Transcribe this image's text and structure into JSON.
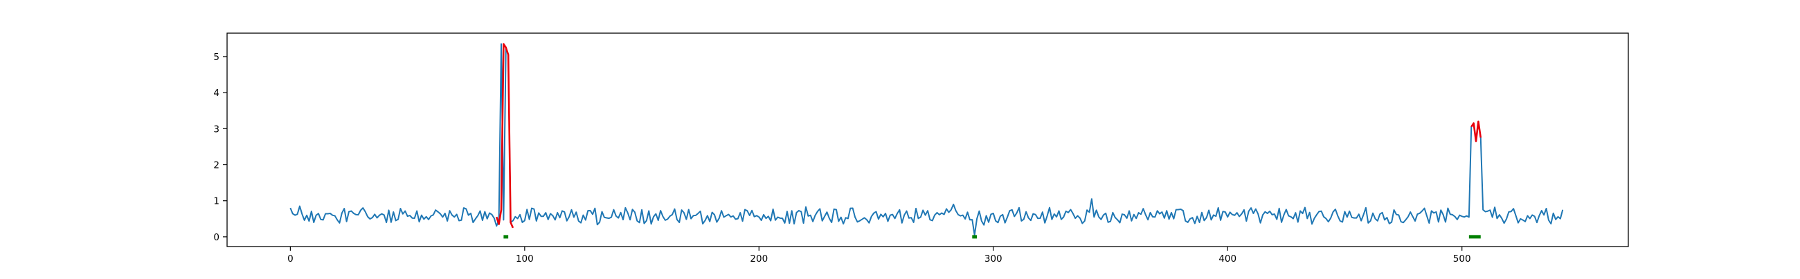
{
  "chart_data": {
    "type": "line",
    "title": "",
    "xlabel": "",
    "ylabel": "",
    "xlim": [
      -27,
      571
    ],
    "ylim": [
      -0.27,
      5.65
    ],
    "x_ticks": [
      0,
      100,
      200,
      300,
      400,
      500
    ],
    "y_ticks": [
      0,
      1,
      2,
      3,
      4,
      5
    ],
    "grid": false,
    "legend": "none",
    "series": [
      {
        "role": "signal",
        "color": "#1f77b4",
        "n_points": 544,
        "baseline_mean": 0.58,
        "baseline_amplitude": 0.2,
        "x_min": 0,
        "x_max": 543,
        "anchors": [
          {
            "x": 0,
            "y": 0.8
          },
          {
            "x": 2,
            "y": 0.6
          },
          {
            "x": 4,
            "y": 0.85
          },
          {
            "x": 10,
            "y": 0.4
          },
          {
            "x": 45,
            "y": 0.45
          },
          {
            "x": 70,
            "y": 0.55
          },
          {
            "x": 88,
            "y": 0.3
          },
          {
            "x": 90,
            "y": 5.35
          },
          {
            "x": 92,
            "y": 5.25
          },
          {
            "x": 93,
            "y": 5.05
          },
          {
            "x": 94,
            "y": 0.4
          },
          {
            "x": 100,
            "y": 0.45
          },
          {
            "x": 150,
            "y": 0.75
          },
          {
            "x": 200,
            "y": 0.55
          },
          {
            "x": 283,
            "y": 0.9
          },
          {
            "x": 292,
            "y": 0.05
          },
          {
            "x": 300,
            "y": 0.65
          },
          {
            "x": 342,
            "y": 1.05
          },
          {
            "x": 400,
            "y": 0.55
          },
          {
            "x": 450,
            "y": 0.7
          },
          {
            "x": 501,
            "y": 0.55
          },
          {
            "x": 504,
            "y": 3.05
          },
          {
            "x": 505,
            "y": 3.15
          },
          {
            "x": 506,
            "y": 2.65
          },
          {
            "x": 507,
            "y": 3.2
          },
          {
            "x": 508,
            "y": 2.75
          },
          {
            "x": 509,
            "y": 0.75
          },
          {
            "x": 543,
            "y": 0.75
          }
        ]
      },
      {
        "role": "detected-anomaly",
        "color": "#e8000b",
        "segments": [
          {
            "points": [
              {
                "x": 88,
                "y": 0.55
              },
              {
                "x": 89,
                "y": 0.35
              },
              {
                "x": 90,
                "y": 0.75
              },
              {
                "x": 91,
                "y": 5.35
              },
              {
                "x": 92,
                "y": 5.25
              },
              {
                "x": 93,
                "y": 5.05
              },
              {
                "x": 94,
                "y": 0.4
              },
              {
                "x": 95,
                "y": 0.25
              }
            ]
          },
          {
            "points": [
              {
                "x": 504,
                "y": 3.05
              },
              {
                "x": 505,
                "y": 3.15
              },
              {
                "x": 506,
                "y": 2.65
              },
              {
                "x": 507,
                "y": 3.2
              },
              {
                "x": 508,
                "y": 2.75
              }
            ]
          }
        ]
      },
      {
        "role": "labeled-anomaly",
        "color": "#008000",
        "segments": [
          {
            "x_start": 91,
            "x_end": 93,
            "y": 0.0
          },
          {
            "x_start": 291,
            "x_end": 293,
            "y": 0.0
          },
          {
            "x_start": 503,
            "x_end": 508,
            "y": 0.0
          }
        ]
      }
    ]
  }
}
